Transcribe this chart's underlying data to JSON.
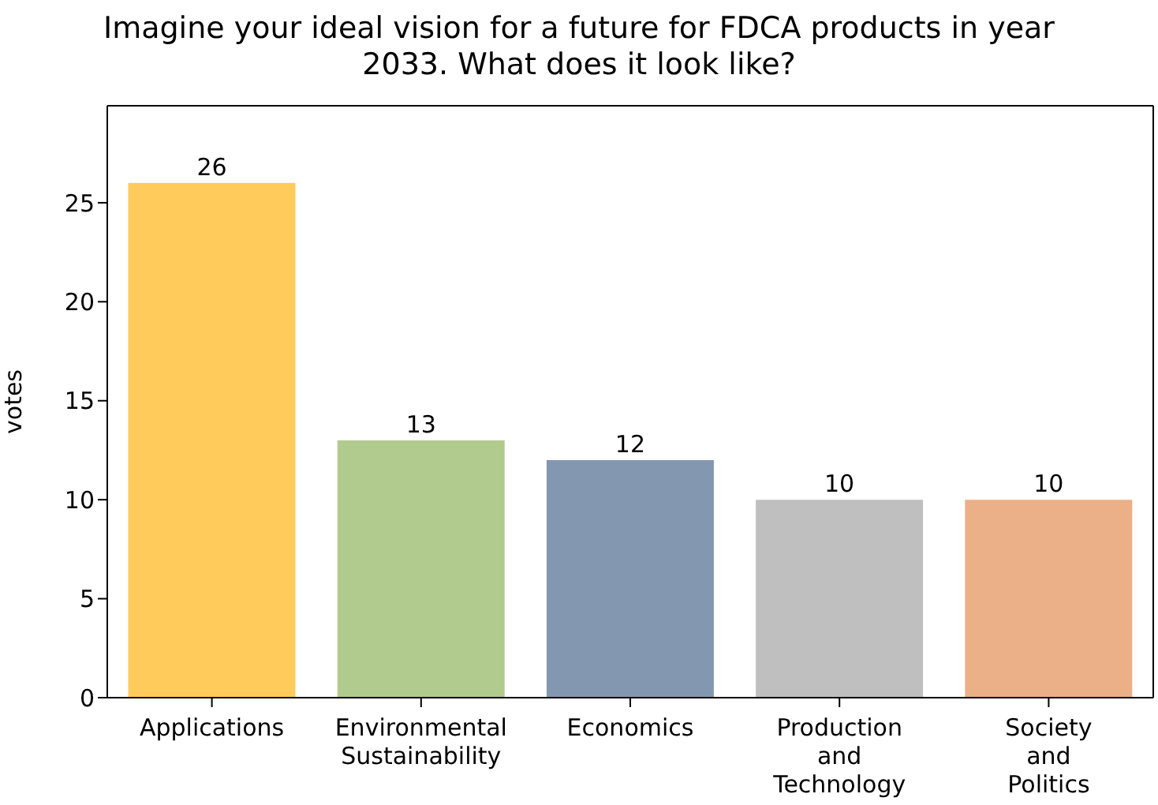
{
  "chart_data": {
    "type": "bar",
    "title": "Imagine your ideal vision for a future for FDCA products in year 2033. What does it look like?",
    "ylabel": "votes",
    "categories": [
      "Applications",
      "Environmental Sustainability",
      "Economics",
      "Production and Technology",
      "Society and Politics"
    ],
    "values": [
      26,
      13,
      12,
      10,
      10
    ],
    "colors": [
      "#ffcc5c",
      "#b1cb8e",
      "#8497b0",
      "#bfbfbf",
      "#ebb088"
    ],
    "ylim": [
      0,
      29.9
    ],
    "yticks": [
      0,
      5,
      10,
      15,
      20,
      25
    ],
    "data_labels": true,
    "grid": false,
    "legend": false
  }
}
